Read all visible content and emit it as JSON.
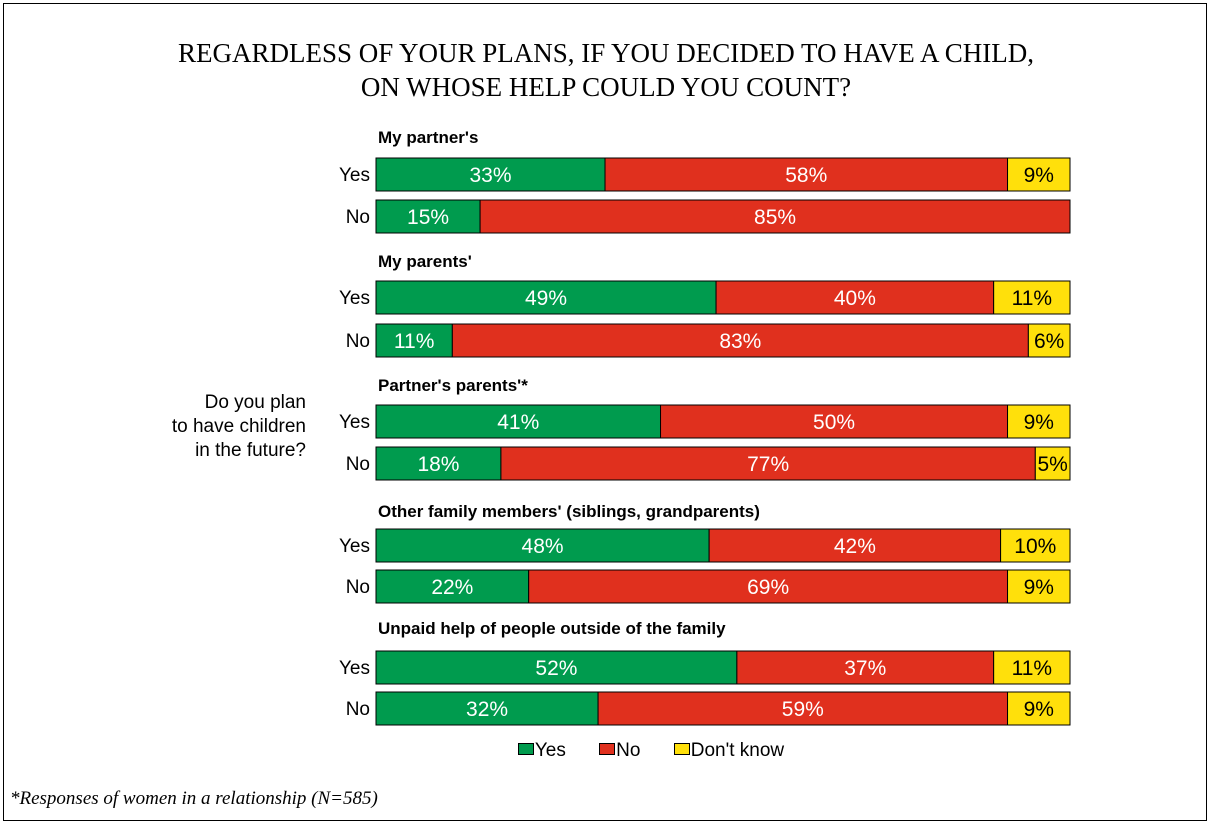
{
  "title_line1": "REGARDLESS OF YOUR PLANS, IF YOU DECIDED TO HAVE A CHILD,",
  "title_line2": "ON WHOSE HELP COULD YOU COUNT?",
  "side_question": [
    "Do you plan",
    "to have children",
    "in the future?"
  ],
  "footnote": "*Responses of women in a relationship (N=585)",
  "colors": {
    "yes": "#009b4e",
    "no": "#e0301e",
    "dont_know": "#ffe00b"
  },
  "chart_data": {
    "type": "bar",
    "orientation": "horizontal",
    "stacked": true,
    "normalized_100": true,
    "legend_position": "bottom",
    "series_names": [
      "Yes",
      "No",
      "Don't know"
    ],
    "groups": [
      {
        "label": "My partner's",
        "rows": [
          {
            "label": "Yes",
            "values": [
              33,
              58,
              9
            ]
          },
          {
            "label": "No",
            "values": [
              15,
              85,
              null
            ]
          }
        ]
      },
      {
        "label": "My parents'",
        "rows": [
          {
            "label": "Yes",
            "values": [
              49,
              40,
              11
            ]
          },
          {
            "label": "No",
            "values": [
              11,
              83,
              6
            ]
          }
        ]
      },
      {
        "label": "Partner's parents'*",
        "rows": [
          {
            "label": "Yes",
            "values": [
              41,
              50,
              9
            ]
          },
          {
            "label": "No",
            "values": [
              18,
              77,
              5
            ]
          }
        ]
      },
      {
        "label": "Other family members' (siblings, grandparents)",
        "rows": [
          {
            "label": "Yes",
            "values": [
              48,
              42,
              10
            ]
          },
          {
            "label": "No",
            "values": [
              22,
              69,
              9
            ]
          }
        ]
      },
      {
        "label": "Unpaid help of people outside of the family",
        "rows": [
          {
            "label": "Yes",
            "values": [
              52,
              37,
              11
            ]
          },
          {
            "label": "No",
            "values": [
              32,
              59,
              9
            ]
          }
        ]
      }
    ]
  }
}
